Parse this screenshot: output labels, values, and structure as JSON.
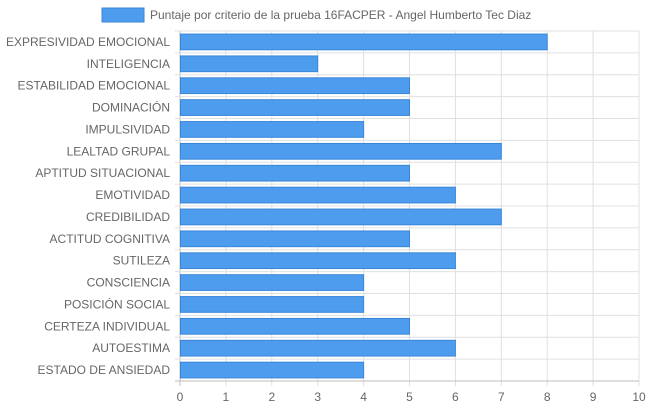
{
  "chart_data": {
    "type": "bar",
    "orientation": "horizontal",
    "categories": [
      "EXPRESIVIDAD EMOCIONAL",
      "INTELIGENCIA",
      "ESTABILIDAD EMOCIONAL",
      "DOMINACIÓN",
      "IMPULSIVIDAD",
      "LEALTAD GRUPAL",
      "APTITUD SITUACIONAL",
      "EMOTIVIDAD",
      "CREDIBILIDAD",
      "ACTITUD COGNITIVA",
      "SUTILEZA",
      "CONSCIENCIA",
      "POSICIÓN SOCIAL",
      "CERTEZA INDIVIDUAL",
      "AUTOESTIMA",
      "ESTADO DE ANSIEDAD"
    ],
    "series": [
      {
        "name": "Puntaje por criterio de la prueba 16FACPER - Angel Humberto Tec Diaz",
        "values": [
          8,
          3,
          5,
          5,
          4,
          7,
          5,
          6,
          7,
          5,
          6,
          4,
          4,
          5,
          6,
          4
        ]
      }
    ],
    "xlim": [
      0,
      10
    ],
    "xticks": [
      "0",
      "1",
      "2",
      "3",
      "4",
      "5",
      "6",
      "7",
      "8",
      "9",
      "10"
    ],
    "grid": true,
    "legend": "top",
    "colors": {
      "bar_fill": "#4d9ced",
      "bar_border": "#3a86d9",
      "text": "#666666",
      "grid": "#e0e0e0"
    }
  }
}
